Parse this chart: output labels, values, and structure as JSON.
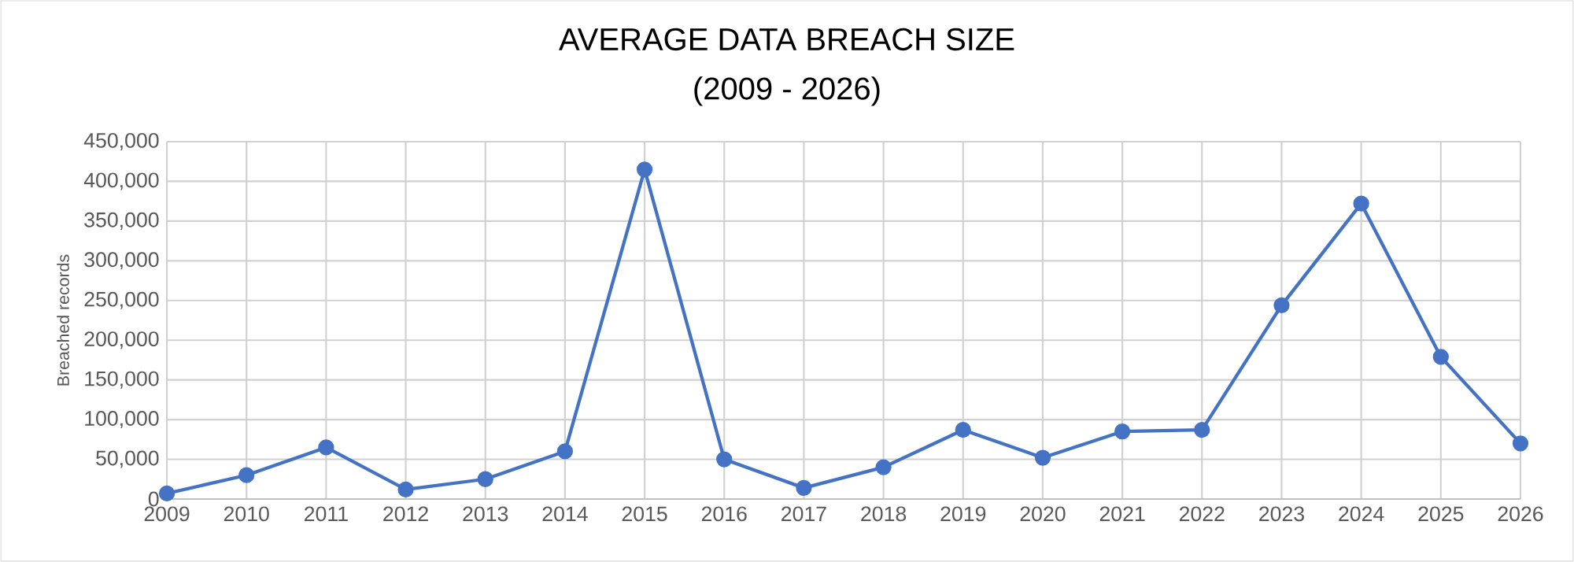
{
  "chart_data": {
    "type": "line",
    "title": "AVERAGE DATA BREACH SIZE",
    "subtitle": "(2009 - 2026)",
    "ylabel": "Breached records",
    "x": [
      2009,
      2010,
      2011,
      2012,
      2013,
      2014,
      2015,
      2016,
      2017,
      2018,
      2019,
      2020,
      2021,
      2022,
      2023,
      2024,
      2025,
      2026
    ],
    "series": [
      {
        "color": "#4472c4",
        "values": [
          7000,
          30000,
          65000,
          12000,
          25000,
          60000,
          415000,
          50000,
          14000,
          40000,
          87000,
          52000,
          85000,
          87000,
          244000,
          372000,
          179000,
          70000
        ]
      }
    ],
    "xlim": [
      2009,
      2026
    ],
    "xticks": [
      2009,
      2010,
      2011,
      2012,
      2013,
      2014,
      2015,
      2016,
      2017,
      2018,
      2019,
      2020,
      2021,
      2022,
      2023,
      2024,
      2025,
      2026
    ],
    "ylim": [
      0,
      450000
    ],
    "yticks": [
      0,
      {
        "value": 50000,
        "label": "50,000"
      },
      {
        "value": 100000,
        "label": "100,000"
      },
      {
        "value": 150000,
        "label": "150,000"
      },
      {
        "value": 200000,
        "label": "200,000"
      },
      {
        "value": 250000,
        "label": "250,000"
      },
      {
        "value": 300000,
        "label": "300,000"
      },
      {
        "value": 350000,
        "label": "350,000"
      },
      {
        "value": 400000,
        "label": "400,000"
      },
      {
        "value": 450000,
        "label": "450,000"
      }
    ],
    "grid": true,
    "marker": "circle",
    "line_style": "solid"
  }
}
